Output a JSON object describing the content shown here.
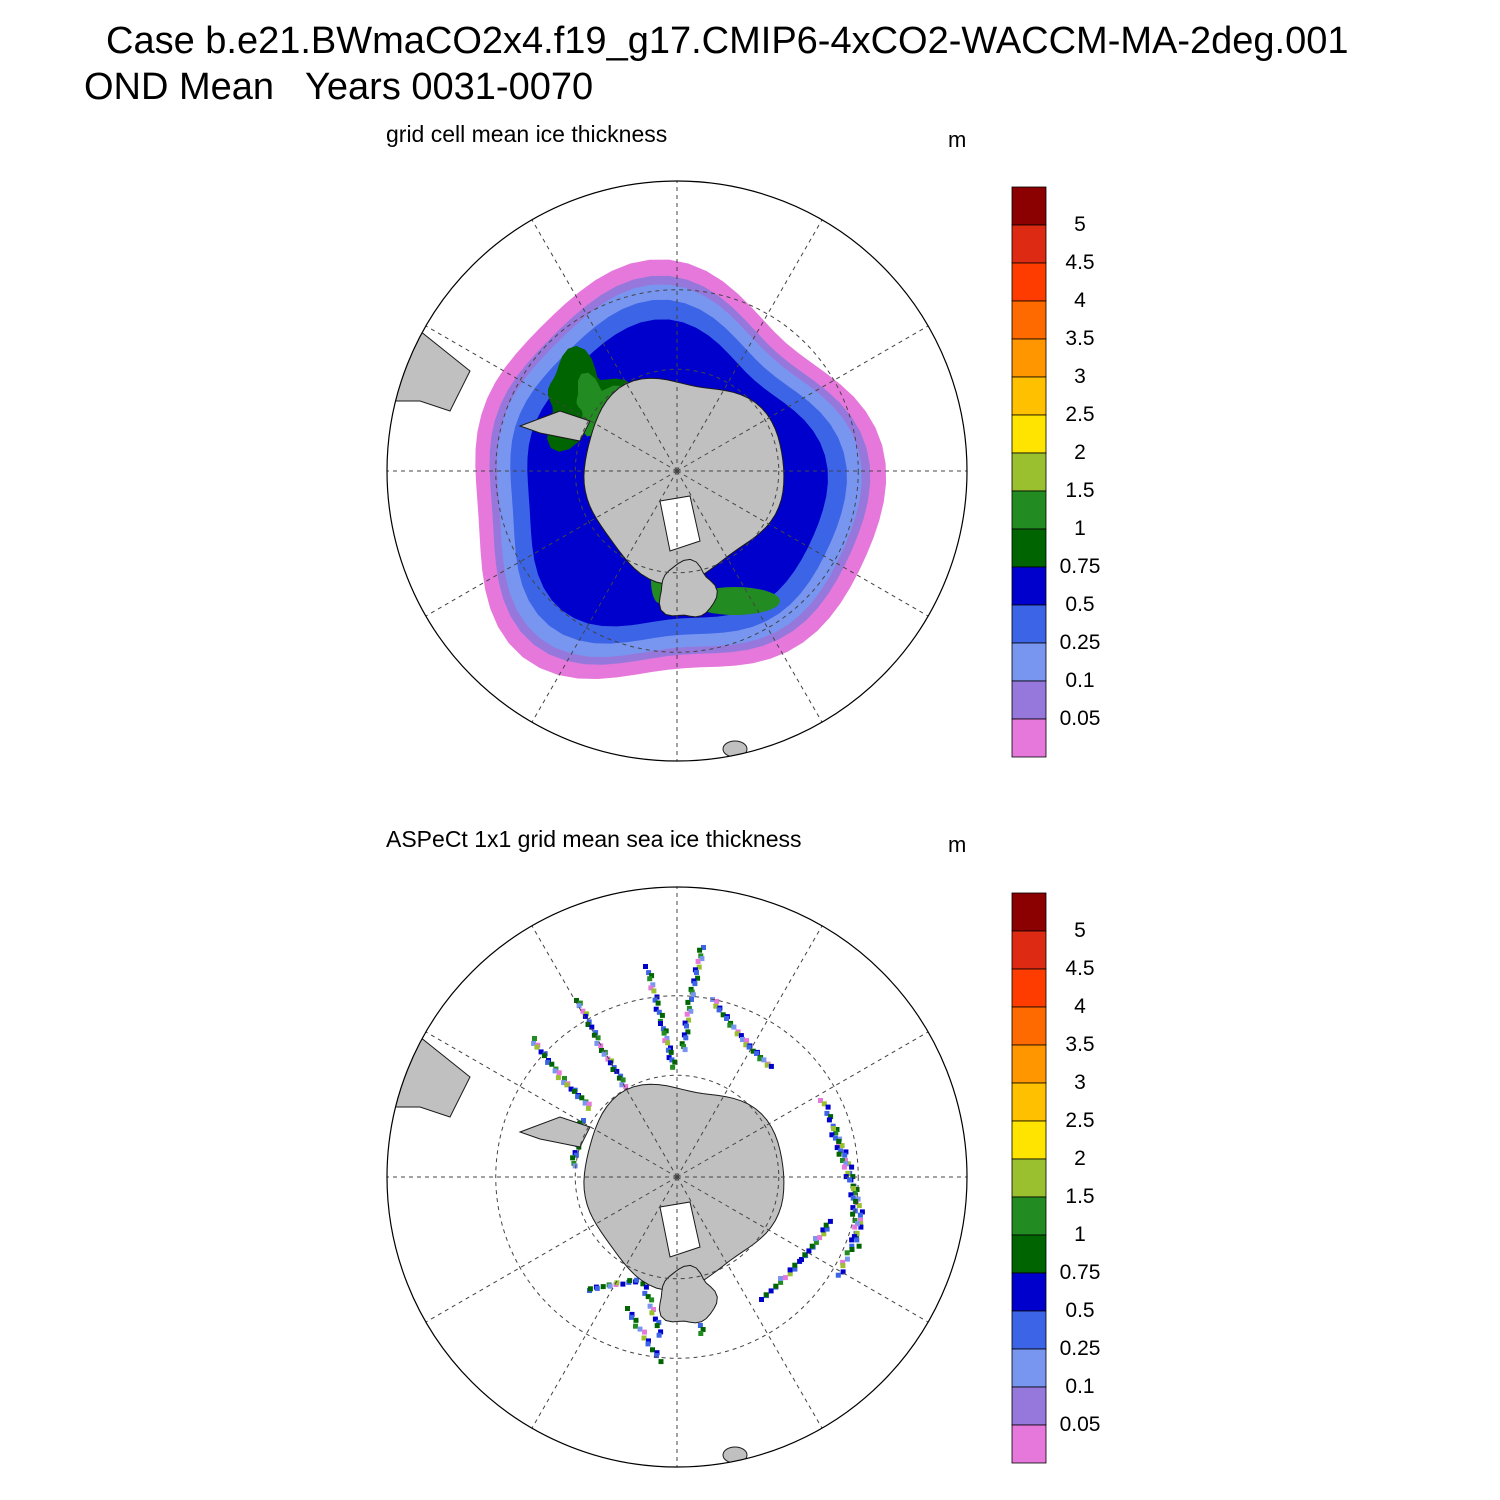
{
  "header": {
    "case_line": "Case b.e21.BWmaCO2x4.f19_g17.CMIP6-4xCO2-WACCM-MA-2deg.001",
    "period_line": "OND Mean   Years 0031-0070"
  },
  "colorbar": {
    "labels": [
      "5",
      "4.5",
      "4",
      "3.5",
      "3",
      "2.5",
      "2",
      "1.5",
      "1",
      "0.75",
      "0.5",
      "0.25",
      "0.1",
      "0.05"
    ],
    "colors": [
      "#8b0000",
      "#dd2a12",
      "#ff3c00",
      "#ff6a00",
      "#ff9600",
      "#ffc000",
      "#ffe400",
      "#9ac030",
      "#228b22",
      "#006400",
      "#0000cd",
      "#3c64e6",
      "#7896f0",
      "#9678dc",
      "#e678dc"
    ]
  },
  "colors": {
    "land": "#c0c0c0",
    "land_outline": "#1a1a1a",
    "grid": "#444444"
  },
  "panels": [
    {
      "title": "grid cell mean ice thickness",
      "units": "m"
    },
    {
      "title": "ASPeCt 1x1 grid mean sea ice thickness",
      "units": "m"
    }
  ]
}
